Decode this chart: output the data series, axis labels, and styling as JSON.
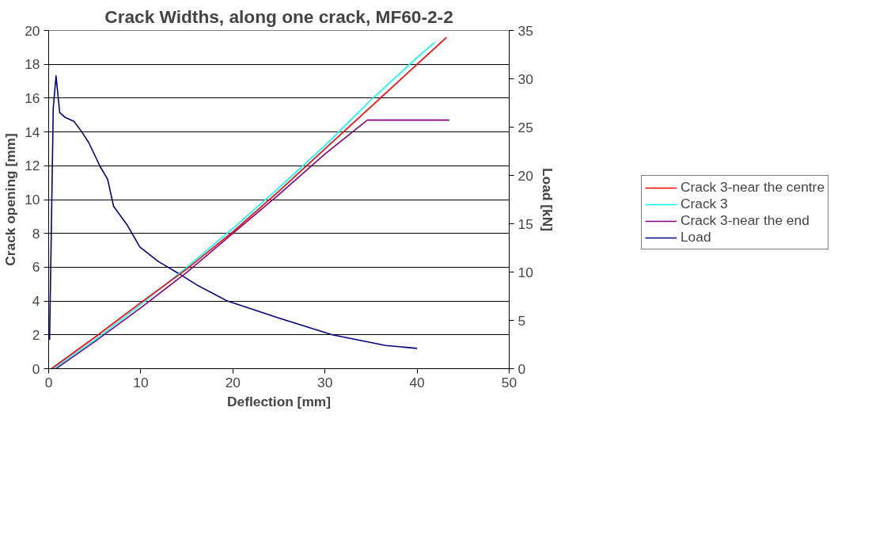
{
  "chart_data": {
    "type": "line",
    "title": "Crack Widths, along one crack, MF60-2-2",
    "xlabel": "Deflection [mm]",
    "ylabel": "Crack opening [mm]",
    "y2label": "Load [kN]",
    "xlim": [
      0,
      50
    ],
    "xticks": [
      0,
      10,
      20,
      30,
      40,
      50
    ],
    "ylim": [
      0,
      20
    ],
    "yticks": [
      0,
      2,
      4,
      6,
      8,
      10,
      12,
      14,
      16,
      18,
      20
    ],
    "y2lim": [
      0,
      35
    ],
    "y2ticks": [
      0,
      5,
      10,
      15,
      20,
      25,
      30,
      35
    ],
    "grid": "y",
    "legend": "right",
    "marker": "none",
    "line_style": "solid",
    "series": [
      {
        "name": "Crack 3-near the centre",
        "color": "#ff0000",
        "x": [
          0.3,
          5,
          10,
          15,
          20,
          25,
          30,
          35,
          40,
          43.2
        ],
        "values": [
          0,
          1.85,
          3.9,
          5.9,
          8.1,
          10.5,
          13.0,
          15.5,
          18.0,
          19.6
        ]
      },
      {
        "name": "Crack 3",
        "color": "#00ffff",
        "x": [
          0.5,
          5,
          10,
          15,
          20,
          25,
          30,
          35,
          40,
          41.9
        ],
        "values": [
          0,
          1.7,
          3.8,
          6.0,
          8.3,
          10.7,
          13.2,
          15.9,
          18.4,
          19.3
        ]
      },
      {
        "name": "Crack 3-near the end",
        "color": "#800080",
        "x": [
          0.8,
          5,
          10,
          15,
          20,
          25,
          30,
          34.6,
          43.5
        ],
        "values": [
          0,
          1.6,
          3.6,
          5.7,
          8.0,
          10.3,
          12.7,
          14.7,
          14.7
        ]
      },
      {
        "name": "Load",
        "color": "#000080",
        "axis": "y2",
        "x": [
          0.1,
          0.3,
          0.5,
          0.8,
          1.2,
          1.8,
          2.75,
          3.6,
          4.35,
          5.6,
          6.4,
          7.05,
          8.5,
          9.9,
          11.9,
          14.2,
          16.2,
          18,
          19.4,
          25.1,
          30.8,
          36.6,
          40.0
        ],
        "values": [
          3,
          15,
          27,
          30.3,
          26.5,
          26.0,
          25.6,
          24.5,
          23.4,
          20.9,
          19.6,
          16.8,
          14.9,
          12.6,
          11.1,
          9.8,
          8.6,
          7.7,
          7.0,
          5.2,
          3.5,
          2.4,
          2.1
        ]
      }
    ]
  }
}
